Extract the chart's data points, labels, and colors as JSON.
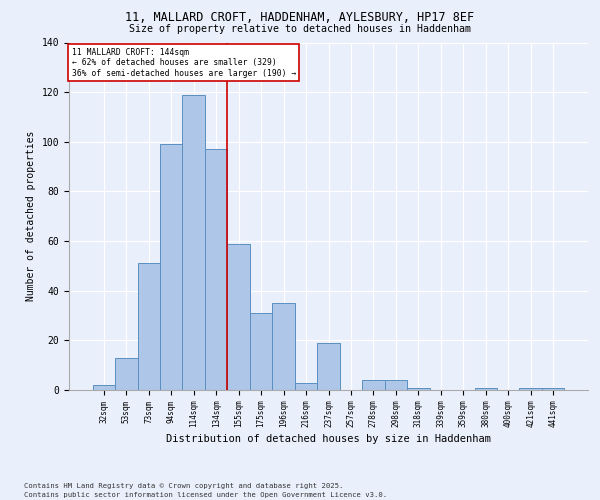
{
  "title1": "11, MALLARD CROFT, HADDENHAM, AYLESBURY, HP17 8EF",
  "title2": "Size of property relative to detached houses in Haddenham",
  "xlabel": "Distribution of detached houses by size in Haddenham",
  "ylabel": "Number of detached properties",
  "categories": [
    "32sqm",
    "53sqm",
    "73sqm",
    "94sqm",
    "114sqm",
    "134sqm",
    "155sqm",
    "175sqm",
    "196sqm",
    "216sqm",
    "237sqm",
    "257sqm",
    "278sqm",
    "298sqm",
    "318sqm",
    "339sqm",
    "359sqm",
    "380sqm",
    "400sqm",
    "421sqm",
    "441sqm"
  ],
  "values": [
    2,
    13,
    51,
    99,
    119,
    97,
    59,
    31,
    35,
    3,
    19,
    0,
    4,
    4,
    1,
    0,
    0,
    1,
    0,
    1,
    1
  ],
  "bar_color": "#aec6e8",
  "bar_edge_color": "#5a8fc0",
  "ylim": [
    0,
    140
  ],
  "yticks": [
    0,
    20,
    40,
    60,
    80,
    100,
    120,
    140
  ],
  "footnote1": "Contains HM Land Registry data © Crown copyright and database right 2025.",
  "footnote2": "Contains public sector information licensed under the Open Government Licence v3.0.",
  "bg_color": "#eaf0fb",
  "grid_color": "#ffffff",
  "annotation_box_color": "#ffffff",
  "annotation_box_edge": "#cc0000",
  "vline_color": "#cc0000",
  "vline_x_index": 5,
  "annotation_line1": "11 MALLARD CROFT: 144sqm",
  "annotation_line2": "← 62% of detached houses are smaller (329)",
  "annotation_line3": "36% of semi-detached houses are larger (190) →"
}
